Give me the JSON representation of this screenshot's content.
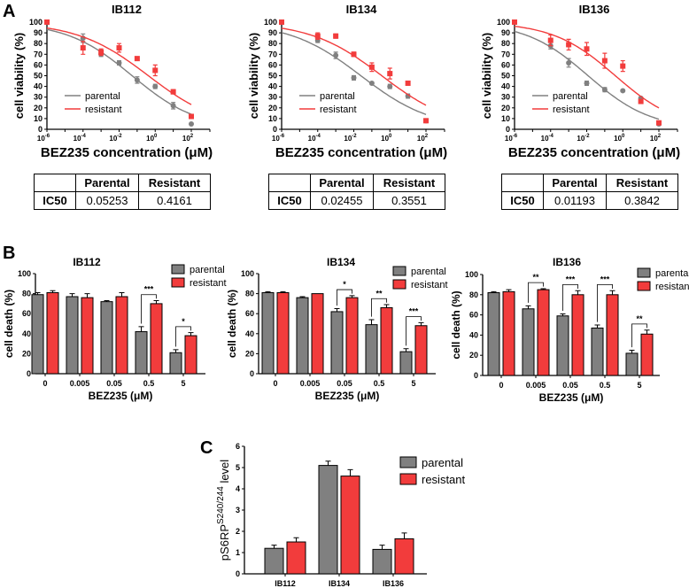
{
  "panel_labels": [
    "A",
    "B",
    "C"
  ],
  "colors": {
    "parental": "#808080",
    "resistant": "#f23c3c"
  },
  "chart_data": [
    {
      "id": "A-IB112",
      "type": "scatter",
      "title": "IB112",
      "xlabel": "BEZ235 concentration (μM)",
      "ylabel": "cell viability (%)",
      "xscale": "log10",
      "xlim_exp": [
        -6,
        2
      ],
      "ylim": [
        0,
        100
      ],
      "xtick_base": "10",
      "xtick_exps": [
        "-6",
        "-4",
        "-2",
        "0",
        "2"
      ],
      "yticks": [
        "0",
        "10",
        "20",
        "30",
        "40",
        "50",
        "60",
        "70",
        "80",
        "90",
        "100"
      ],
      "legend": [
        "parental",
        "resistant"
      ],
      "legend_position": "bottom-left",
      "x_exp": [
        -6,
        -4,
        -3,
        -2,
        -1,
        0,
        1,
        2
      ],
      "series": [
        {
          "name": "parental",
          "values": [
            100,
            85,
            70,
            62,
            46,
            40,
            22,
            5
          ],
          "errors": [
            0,
            4,
            2,
            2,
            3,
            2,
            3,
            0
          ],
          "ic50": 0.05253,
          "hill": 0.24
        },
        {
          "name": "resistant",
          "values": [
            100,
            76,
            72,
            76,
            66,
            55,
            35,
            12
          ],
          "errors": [
            0,
            6,
            3,
            4,
            1,
            5,
            2,
            2
          ],
          "ic50": 0.4161,
          "hill": 0.22
        }
      ],
      "table": {
        "row_label": "IC50",
        "headers": [
          "Parental",
          "Resistant"
        ],
        "values": [
          "0.05253",
          "0.4161"
        ]
      }
    },
    {
      "id": "A-IB134",
      "type": "scatter",
      "title": "IB134",
      "xlabel": "BEZ235 concentration (μM)",
      "ylabel": "cell viability (%)",
      "xscale": "log10",
      "xlim_exp": [
        -6,
        2
      ],
      "ylim": [
        0,
        100
      ],
      "xtick_base": "10",
      "xtick_exps": [
        "-6",
        "-4",
        "-2",
        "0",
        "2"
      ],
      "yticks": [
        "0",
        "10",
        "20",
        "30",
        "40",
        "50",
        "60",
        "70",
        "80",
        "90",
        "100"
      ],
      "legend": [
        "parental",
        "resistant"
      ],
      "legend_position": "bottom-left",
      "x_exp": [
        -6,
        -4,
        -3,
        -2,
        -1,
        0,
        1,
        2
      ],
      "series": [
        {
          "name": "parental",
          "values": [
            100,
            83,
            69,
            48,
            43,
            40,
            31,
            8
          ],
          "errors": [
            0,
            2,
            3,
            2,
            1,
            2,
            2,
            0
          ],
          "ic50": 0.02455,
          "hill": 0.22
        },
        {
          "name": "resistant",
          "values": [
            100,
            87,
            87,
            70,
            58,
            52,
            43,
            8
          ],
          "errors": [
            0,
            3,
            2,
            2,
            4,
            5,
            1,
            1
          ],
          "ic50": 0.3551,
          "hill": 0.22
        }
      ],
      "table": {
        "row_label": "IC50",
        "headers": [
          "Parental",
          "Resistant"
        ],
        "values": [
          "0.02455",
          "0.3551"
        ]
      }
    },
    {
      "id": "A-IB136",
      "type": "scatter",
      "title": "IB136",
      "xlabel": "BEZ235 concentration (μM)",
      "ylabel": "cell viability (%)",
      "xscale": "log10",
      "xlim_exp": [
        -6,
        2
      ],
      "ylim": [
        0,
        100
      ],
      "xtick_base": "10",
      "xtick_exps": [
        "-6",
        "-4",
        "-2",
        "0",
        "2"
      ],
      "yticks": [
        "0",
        "10",
        "20",
        "30",
        "40",
        "50",
        "60",
        "70",
        "80",
        "90",
        "100"
      ],
      "legend": [
        "parental",
        "resistant"
      ],
      "legend_position": "bottom-left",
      "x_exp": [
        -6,
        -4,
        -3,
        -2,
        -1,
        0,
        1,
        2
      ],
      "series": [
        {
          "name": "parental",
          "values": [
            100,
            78,
            62,
            43,
            37,
            36,
            29,
            5
          ],
          "errors": [
            0,
            3,
            4,
            2,
            2,
            1,
            1,
            0
          ],
          "ic50": 0.01193,
          "hill": 0.25
        },
        {
          "name": "resistant",
          "values": [
            100,
            83,
            79,
            75,
            64,
            59,
            26,
            6
          ],
          "errors": [
            0,
            5,
            5,
            6,
            7,
            5,
            2,
            1
          ],
          "ic50": 0.3842,
          "hill": 0.25
        }
      ],
      "table": {
        "row_label": "IC50",
        "headers": [
          "Parental",
          "Resistant"
        ],
        "values": [
          "0.01193",
          "0.3842"
        ]
      }
    },
    {
      "id": "B-IB112",
      "type": "bar",
      "title": "IB112",
      "xlabel": "BEZ235 (μM)",
      "ylabel": "cell death (%)",
      "ylim": [
        0,
        100
      ],
      "yticks": [
        "0",
        "20",
        "40",
        "60",
        "80",
        "100"
      ],
      "categories": [
        "0",
        "0.005",
        "0.05",
        "0.5",
        "5"
      ],
      "legend": [
        "parental",
        "resistant"
      ],
      "legend_position": "top-right",
      "series": [
        {
          "name": "parental",
          "values": [
            79,
            77,
            72,
            42,
            21
          ],
          "errors": [
            2,
            3,
            1,
            5,
            3
          ]
        },
        {
          "name": "resistant",
          "values": [
            81,
            76,
            77,
            70,
            38
          ],
          "errors": [
            2,
            4,
            4,
            3,
            3
          ]
        }
      ],
      "significance": [
        "",
        "",
        "",
        "***",
        "*"
      ]
    },
    {
      "id": "B-IB134",
      "type": "bar",
      "title": "IB134",
      "xlabel": "BEZ235 (μM)",
      "ylabel": "cell death (%)",
      "ylim": [
        0,
        100
      ],
      "yticks": [
        "0",
        "20",
        "40",
        "60",
        "80",
        "100"
      ],
      "categories": [
        "0",
        "0.005",
        "0.05",
        "0.5",
        "5"
      ],
      "legend": [
        "parental",
        "resistant"
      ],
      "legend_position": "top-right",
      "series": [
        {
          "name": "parental",
          "values": [
            81,
            76,
            62,
            49,
            22
          ],
          "errors": [
            1,
            1,
            3,
            5,
            3
          ]
        },
        {
          "name": "resistant",
          "values": [
            81,
            80,
            76,
            66,
            48
          ],
          "errors": [
            1,
            0,
            2,
            3,
            3
          ]
        }
      ],
      "significance": [
        "",
        "",
        "*",
        "**",
        "***"
      ]
    },
    {
      "id": "B-IB136",
      "type": "bar",
      "title": "IB136",
      "xlabel": "BEZ235 (μM)",
      "ylabel": "cell death (%)",
      "ylim": [
        0,
        100
      ],
      "yticks": [
        "0",
        "20",
        "40",
        "60",
        "80",
        "100"
      ],
      "categories": [
        "0",
        "0.005",
        "0.05",
        "0.5",
        "5"
      ],
      "legend": [
        "parental",
        "resistant"
      ],
      "legend_position": "top-right",
      "series": [
        {
          "name": "parental",
          "values": [
            82,
            66,
            59,
            47,
            22
          ],
          "errors": [
            1,
            3,
            2,
            3,
            3
          ]
        },
        {
          "name": "resistant",
          "values": [
            83,
            85,
            80,
            80,
            41
          ],
          "errors": [
            2,
            1,
            4,
            4,
            4
          ]
        }
      ],
      "significance": [
        "",
        "**",
        "***",
        "***",
        "**"
      ]
    },
    {
      "id": "C",
      "type": "bar",
      "title": "",
      "xlabel": "",
      "ylabel_main": "pS6RP",
      "ylabel_sup": "S240/244",
      "ylabel_tail": " level",
      "ylim": [
        0,
        6
      ],
      "yticks": [
        "0",
        "1",
        "2",
        "3",
        "4",
        "5",
        "6"
      ],
      "categories": [
        "IB112",
        "IB134",
        "IB136"
      ],
      "legend": [
        "parental",
        "resistant"
      ],
      "legend_position": "top-right",
      "series": [
        {
          "name": "parental",
          "values": [
            1.2,
            5.1,
            1.15
          ],
          "errors": [
            0.15,
            0.2,
            0.2
          ]
        },
        {
          "name": "resistant",
          "values": [
            1.5,
            4.6,
            1.65
          ],
          "errors": [
            0.2,
            0.3,
            0.27
          ]
        }
      ]
    }
  ]
}
